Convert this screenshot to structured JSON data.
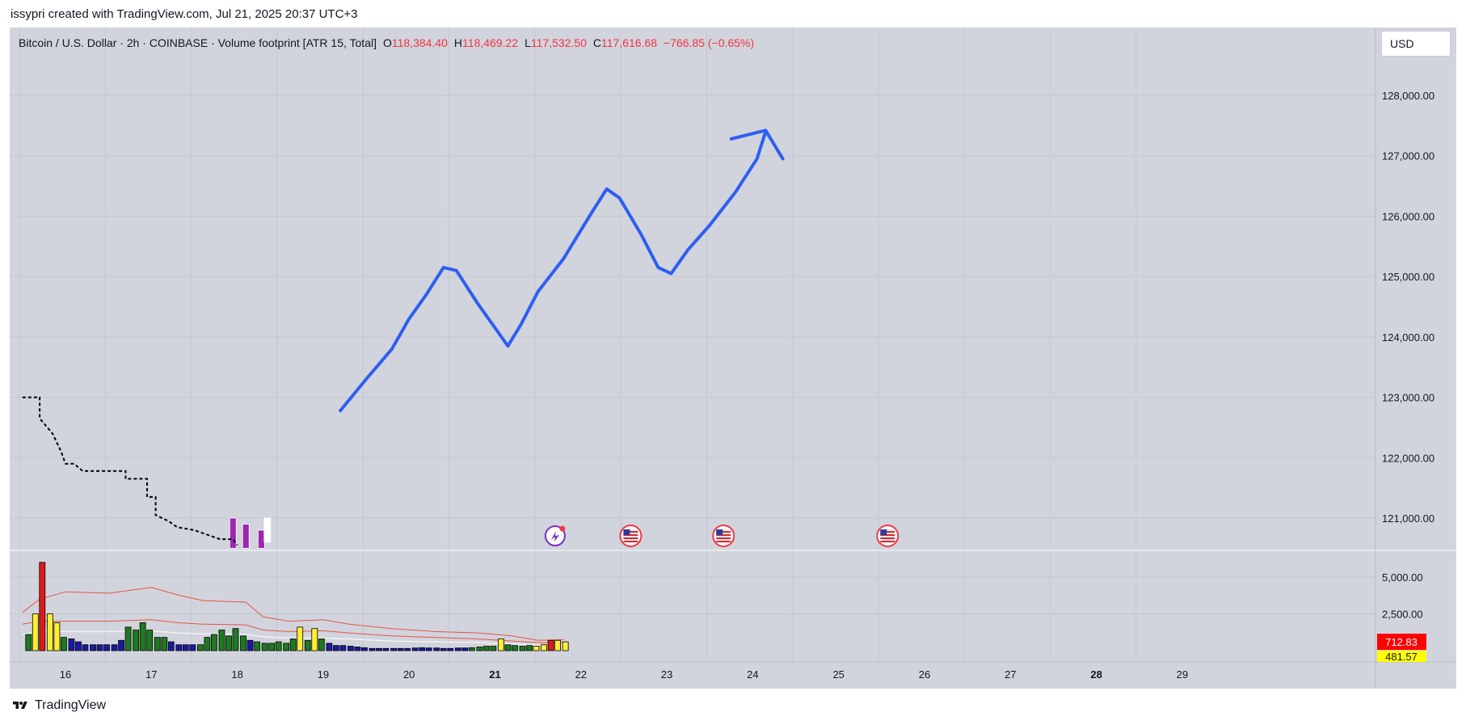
{
  "caption": "issypri created with TradingView.com, Jul 21, 2025 20:37 UTC+3",
  "legend": {
    "symbol": "Bitcoin / U.S. Dollar · 2h · COINBASE · Volume footprint [ATR 15, Total]",
    "o_label": "O",
    "o_value": "118,384.40",
    "h_label": "H",
    "h_value": "118,469.22",
    "l_label": "L",
    "l_value": "117,532.50",
    "c_label": "C",
    "c_value": "117,616.68",
    "change": "−766.85 (−0.65%)"
  },
  "currency": "USD",
  "footer": {
    "brand": "TradingView"
  },
  "colors": {
    "background": "#d1d4dc",
    "grid": "#c4c8d2",
    "drawing": "#2e5ef2",
    "vol_green": "#1f7a1f",
    "vol_yellow": "#ffee33",
    "vol_red": "#e01a1a",
    "vol_blue": "#1a1aa6",
    "band": "#e8524a",
    "last_volume_bg": "#ff0000",
    "avg_volume_bg": "#ffff00"
  },
  "chart_data": {
    "type": "line",
    "price_axis": {
      "ticks": [
        121000,
        122000,
        123000,
        124000,
        125000,
        126000,
        127000,
        128000
      ],
      "tick_labels": [
        "121,000.00",
        "122,000.00",
        "123,000.00",
        "124,000.00",
        "125,000.00",
        "126,000.00",
        "127,000.00",
        "128,000.00"
      ]
    },
    "volume_axis": {
      "ticks": [
        2500,
        5000
      ],
      "tick_labels": [
        "2,500.00",
        "5,000.00"
      ],
      "last_value_label": "712.83",
      "avg_value_label": "481.57"
    },
    "time_axis": {
      "ticks": [
        16,
        17,
        18,
        19,
        20,
        21,
        22,
        23,
        24,
        25,
        26,
        27,
        28,
        29
      ],
      "tick_labels": [
        "16",
        "17",
        "18",
        "19",
        "20",
        "21",
        "22",
        "23",
        "24",
        "25",
        "26",
        "27",
        "28",
        "29"
      ],
      "bold": [
        "21",
        "28"
      ]
    },
    "series": [
      {
        "kind": "drawn-projection-arrow",
        "points": [
          [
            19.2,
            122780
          ],
          [
            19.5,
            123300
          ],
          [
            19.8,
            123800
          ],
          [
            20.0,
            124300
          ],
          [
            20.2,
            124700
          ],
          [
            20.4,
            125150
          ],
          [
            20.55,
            125100
          ],
          [
            20.8,
            124550
          ],
          [
            21.0,
            124150
          ],
          [
            21.15,
            123850
          ],
          [
            21.3,
            124200
          ],
          [
            21.5,
            124750
          ],
          [
            21.8,
            125300
          ],
          [
            22.1,
            126000
          ],
          [
            22.3,
            126450
          ],
          [
            22.45,
            126300
          ],
          [
            22.7,
            125700
          ],
          [
            22.9,
            125150
          ],
          [
            23.05,
            125050
          ],
          [
            23.25,
            125450
          ],
          [
            23.5,
            125850
          ],
          [
            23.8,
            126400
          ],
          [
            24.05,
            126950
          ],
          [
            24.15,
            127400
          ]
        ],
        "arrow_head": [
          [
            23.75,
            127280
          ],
          [
            24.15,
            127420
          ],
          [
            24.35,
            126950
          ]
        ]
      },
      {
        "kind": "dashed-step",
        "points": [
          [
            15.5,
            123000
          ],
          [
            15.7,
            123000
          ],
          [
            15.7,
            122650
          ],
          [
            15.85,
            122400
          ],
          [
            15.95,
            122100
          ],
          [
            16.0,
            121900
          ],
          [
            16.1,
            121900
          ],
          [
            16.2,
            121780
          ],
          [
            16.5,
            121780
          ],
          [
            16.5,
            121780
          ],
          [
            16.7,
            121780
          ],
          [
            16.7,
            121650
          ],
          [
            16.95,
            121650
          ],
          [
            16.95,
            121350
          ],
          [
            17.05,
            121350
          ],
          [
            17.05,
            121050
          ],
          [
            17.2,
            120950
          ],
          [
            17.3,
            120850
          ],
          [
            17.5,
            120800
          ],
          [
            17.6,
            120750
          ],
          [
            17.8,
            120650
          ],
          [
            17.95,
            120650
          ],
          [
            18.0,
            120550
          ]
        ]
      }
    ],
    "volume": {
      "x": [
        15.57,
        15.65,
        15.73,
        15.82,
        15.9,
        15.98,
        16.07,
        16.15,
        16.23,
        16.32,
        16.4,
        16.48,
        16.57,
        16.65,
        16.73,
        16.82,
        16.9,
        16.98,
        17.07,
        17.15,
        17.23,
        17.32,
        17.4,
        17.48,
        17.57,
        17.65,
        17.73,
        17.82,
        17.9,
        17.98,
        18.07,
        18.15,
        18.23,
        18.32,
        18.4,
        18.48,
        18.57,
        18.65,
        18.73,
        18.82,
        18.9,
        18.98,
        19.07,
        19.15,
        19.23,
        19.32,
        19.4,
        19.48,
        19.57,
        19.65,
        19.73,
        19.82,
        19.9,
        19.98,
        20.07,
        20.15,
        20.23,
        20.32,
        20.4,
        20.48,
        20.57,
        20.65,
        20.73,
        20.82,
        20.9,
        20.98,
        21.07,
        21.15,
        21.23,
        21.32,
        21.4,
        21.48,
        21.57,
        21.65,
        21.73,
        21.82
      ],
      "values": [
        1100,
        2500,
        6000,
        2500,
        1900,
        900,
        800,
        600,
        400,
        400,
        400,
        400,
        400,
        700,
        1600,
        1400,
        1900,
        1400,
        900,
        900,
        600,
        400,
        400,
        400,
        400,
        900,
        1100,
        1400,
        1000,
        1500,
        1000,
        700,
        600,
        500,
        500,
        600,
        500,
        800,
        1600,
        700,
        1500,
        800,
        500,
        350,
        350,
        300,
        250,
        200,
        150,
        150,
        150,
        150,
        150,
        150,
        180,
        200,
        180,
        180,
        150,
        150,
        180,
        180,
        200,
        250,
        300,
        300,
        800,
        400,
        350,
        300,
        350,
        300,
        400,
        700,
        700,
        600
      ],
      "colors": [
        "green",
        "yellow",
        "red",
        "yellow",
        "yellow",
        "green",
        "blue",
        "blue",
        "blue",
        "blue",
        "blue",
        "blue",
        "blue",
        "blue",
        "green",
        "green",
        "green",
        "green",
        "green",
        "green",
        "blue",
        "blue",
        "blue",
        "blue",
        "green",
        "green",
        "green",
        "green",
        "green",
        "green",
        "green",
        "blue",
        "green",
        "green",
        "green",
        "green",
        "green",
        "green",
        "yellow",
        "green",
        "yellow",
        "green",
        "blue",
        "blue",
        "blue",
        "blue",
        "blue",
        "blue",
        "blue",
        "blue",
        "blue",
        "blue",
        "blue",
        "blue",
        "blue",
        "blue",
        "blue",
        "blue",
        "blue",
        "blue",
        "blue",
        "blue",
        "green",
        "green",
        "green",
        "green",
        "yellow",
        "green",
        "green",
        "green",
        "green",
        "yellow",
        "yellow",
        "red",
        "yellow",
        "yellow"
      ]
    },
    "volume_bands": [
      {
        "points": [
          [
            15.5,
            2600
          ],
          [
            15.7,
            3500
          ],
          [
            16.0,
            4000
          ],
          [
            16.5,
            3900
          ],
          [
            17.0,
            4300
          ],
          [
            17.3,
            3800
          ],
          [
            17.6,
            3400
          ],
          [
            18.1,
            3300
          ],
          [
            18.3,
            2300
          ],
          [
            18.6,
            2000
          ],
          [
            19.0,
            2100
          ],
          [
            19.3,
            1800
          ],
          [
            19.8,
            1500
          ],
          [
            20.3,
            1300
          ],
          [
            20.8,
            1200
          ],
          [
            21.2,
            1000
          ],
          [
            21.5,
            700
          ],
          [
            21.8,
            750
          ]
        ]
      },
      {
        "points": [
          [
            15.5,
            1800
          ],
          [
            15.7,
            2000
          ],
          [
            16.0,
            2000
          ],
          [
            16.5,
            2000
          ],
          [
            17.0,
            2100
          ],
          [
            17.3,
            1900
          ],
          [
            17.6,
            1800
          ],
          [
            18.1,
            1750
          ],
          [
            18.3,
            1400
          ],
          [
            18.6,
            1300
          ],
          [
            19.0,
            1350
          ],
          [
            19.3,
            1200
          ],
          [
            19.8,
            1000
          ],
          [
            20.3,
            900
          ],
          [
            20.8,
            800
          ],
          [
            21.2,
            650
          ],
          [
            21.5,
            550
          ],
          [
            21.8,
            550
          ]
        ]
      },
      {
        "points": [
          [
            15.5,
            1100
          ],
          [
            15.7,
            1300
          ],
          [
            16.0,
            1300
          ],
          [
            16.5,
            1300
          ],
          [
            17.0,
            1350
          ],
          [
            17.3,
            1200
          ],
          [
            17.6,
            1150
          ],
          [
            18.1,
            1100
          ],
          [
            18.3,
            950
          ],
          [
            18.6,
            850
          ],
          [
            19.0,
            850
          ],
          [
            19.3,
            800
          ],
          [
            19.8,
            650
          ],
          [
            20.3,
            600
          ],
          [
            20.8,
            550
          ],
          [
            21.2,
            450
          ],
          [
            21.5,
            380
          ],
          [
            21.8,
            380
          ]
        ]
      }
    ],
    "event_markers": [
      {
        "x": 21.7,
        "type": "news"
      },
      {
        "x": 22.58,
        "type": "economic-us"
      },
      {
        "x": 23.66,
        "type": "economic-us"
      },
      {
        "x": 25.57,
        "type": "economic-us"
      }
    ],
    "footprint_candles": [
      {
        "x": 17.95,
        "top": 121000,
        "bottom": 120500,
        "color": "#9c27b0"
      },
      {
        "x": 18.1,
        "top": 120900,
        "bottom": 120500,
        "color": "#9c27b0"
      },
      {
        "x": 18.28,
        "top": 120800,
        "bottom": 120500,
        "color": "#9c27b0"
      },
      {
        "x": 18.35,
        "top": 121000,
        "bottom": 120600,
        "color": "#ffffff"
      }
    ]
  }
}
